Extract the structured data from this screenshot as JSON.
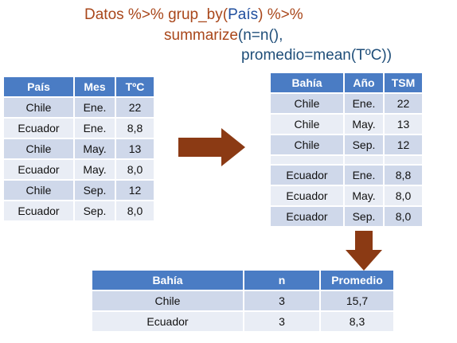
{
  "code": {
    "line1_a": "Datos %>% grup_by(",
    "line1_b": "País",
    "line1_c": ") %>%",
    "line2_a": "summarize",
    "line2_b": "(n=n(),",
    "line3": "promedio=mean(TºC))"
  },
  "table_input": {
    "headers": [
      "País",
      "Mes",
      "TºC"
    ],
    "rows": [
      [
        "Chile",
        "Ene.",
        "22"
      ],
      [
        "Ecuador",
        "Ene.",
        "8,8"
      ],
      [
        "Chile",
        "May.",
        "13"
      ],
      [
        "Ecuador",
        "May.",
        "8,0"
      ],
      [
        "Chile",
        "Sep.",
        "12"
      ],
      [
        "Ecuador",
        "Sep.",
        "8,0"
      ]
    ]
  },
  "table_grouped": {
    "headers": [
      "Bahía",
      "Año",
      "TSM"
    ],
    "group1": [
      [
        "Chile",
        "Ene.",
        "22"
      ],
      [
        "Chile",
        "May.",
        "13"
      ],
      [
        "Chile",
        "Sep.",
        "12"
      ]
    ],
    "group2": [
      [
        "Ecuador",
        "Ene.",
        "8,8"
      ],
      [
        "Ecuador",
        "May.",
        "8,0"
      ],
      [
        "Ecuador",
        "Sep.",
        "8,0"
      ]
    ]
  },
  "table_result": {
    "headers": [
      "Bahía",
      "n",
      "Promedio"
    ],
    "rows": [
      [
        "Chile",
        "3",
        "15,7"
      ],
      [
        "Ecuador",
        "3",
        "8,3"
      ]
    ]
  },
  "colors": {
    "header": "#4a7cc4",
    "row_dark": "#cfd8ea",
    "row_light": "#e9edf5",
    "arrow": "#8b3a14",
    "code_brown": "#a9471b",
    "code_blue": "#1f4e9e"
  }
}
